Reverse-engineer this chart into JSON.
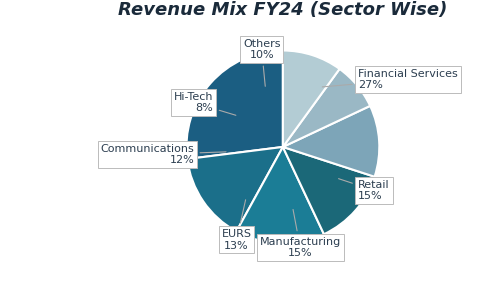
{
  "title": "Revenue Mix FY24 (Sector Wise)",
  "labels": [
    "Financial Services",
    "Retail",
    "Manufacturing",
    "EURS",
    "Communications",
    "Hi-Tech",
    "Others"
  ],
  "values": [
    27,
    15,
    15,
    13,
    12,
    8,
    10
  ],
  "colors": [
    "#1b5e82",
    "#1b6f8a",
    "#1b7d96",
    "#1b6878",
    "#7da5b8",
    "#9ab8c5",
    "#b3ccd4"
  ],
  "startangle": 90,
  "background_color": "#ffffff",
  "title_fontsize": 13,
  "label_fontsize": 8
}
